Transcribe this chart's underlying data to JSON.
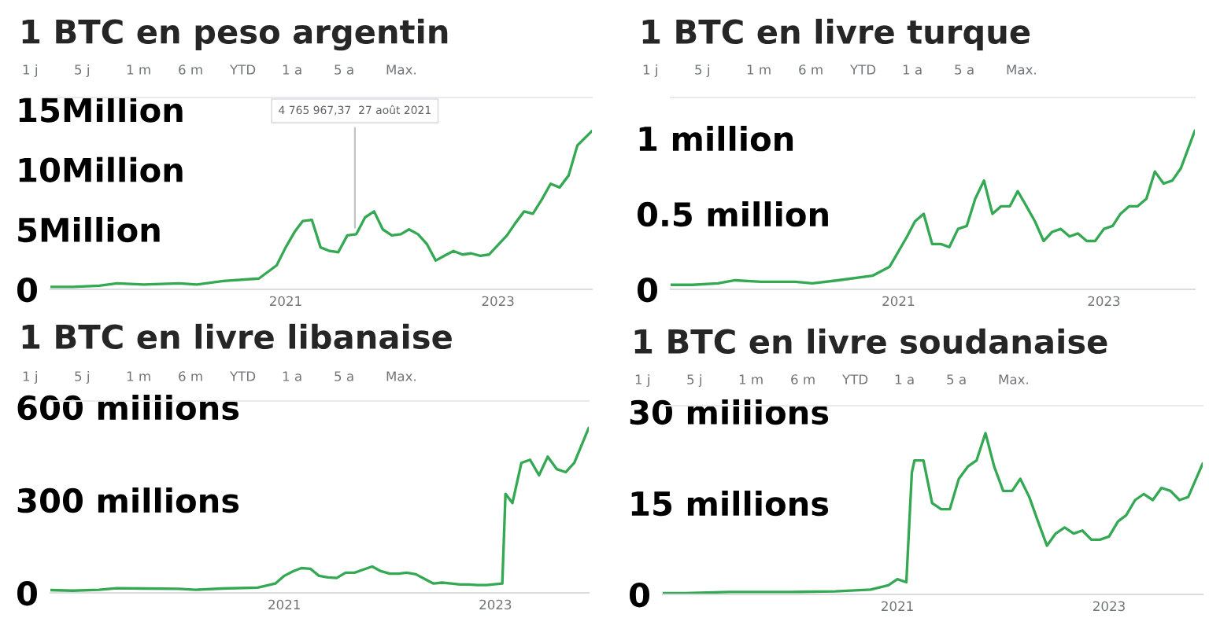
{
  "chart_data": [
    {
      "type": "line",
      "title": "1 BTC en peso argentin",
      "annotations": [
        "1 j",
        "5 j",
        "1 m",
        "6 m",
        "YTD",
        "1 a",
        "5 a",
        "Max.",
        {
          "text": "4 765 967,37  27 août 2021",
          "x": "2021-08-27",
          "y": 4.77
        }
      ],
      "x": [
        "2018-10-15",
        "2019-01",
        "2019-04",
        "2019-06",
        "2019-09",
        "2020-01",
        "2020-03",
        "2020-06",
        "2020-10",
        "2020-12",
        "2021-01",
        "2021-02",
        "2021-03",
        "2021-04",
        "2021-05",
        "2021-06",
        "2021-07",
        "2021-08",
        "2021-09",
        "2021-10",
        "2021-11",
        "2021-12",
        "2022-01",
        "2022-02",
        "2022-03",
        "2022-04",
        "2022-05",
        "2022-06",
        "2022-07",
        "2022-08",
        "2022-09",
        "2022-10",
        "2022-11",
        "2022-12",
        "2023-01",
        "2023-02",
        "2023-03",
        "2023-04",
        "2023-05",
        "2023-06",
        "2023-07",
        "2023-08",
        "2023-09",
        "2023-10",
        "2023-11-20"
      ],
      "series": [
        {
          "color": "#34a853",
          "values": [
            0.2,
            0.2,
            0.3,
            0.5,
            0.4,
            0.5,
            0.4,
            0.7,
            0.9,
            2.0,
            3.5,
            4.8,
            5.7,
            5.8,
            3.5,
            3.2,
            3.1,
            4.5,
            4.6,
            6.0,
            6.5,
            5.0,
            4.5,
            4.6,
            5.0,
            4.6,
            3.8,
            2.4,
            2.8,
            3.2,
            2.9,
            3.0,
            2.8,
            2.9,
            3.7,
            4.5,
            5.5,
            6.5,
            6.3,
            7.5,
            8.8,
            8.5,
            9.5,
            12.0,
            13.2
          ]
        }
      ],
      "xlim": [
        "2018-10-15",
        "2023-11-20"
      ],
      "xticks": [
        {
          "value": "2021-01-01",
          "label": "2021"
        },
        {
          "value": "2023-01-01",
          "label": "2023"
        }
      ],
      "ylim": [
        0,
        16
      ],
      "yticks": [
        0,
        {
          "value": 5,
          "label": "5Million"
        },
        {
          "value": 10,
          "label": "10Million"
        },
        {
          "value": 15,
          "label": "15Million"
        }
      ],
      "marker": "none",
      "line_style": "solid",
      "grid": false,
      "legend": false
    },
    {
      "type": "line",
      "title": "1 BTC en livre turque",
      "annotations": [
        "1 j",
        "5 j",
        "1 m",
        "6 m",
        "YTD",
        "1 a",
        "5 a",
        "Max."
      ],
      "x": [
        "2018-10-15",
        "2019-01",
        "2019-04",
        "2019-06",
        "2019-09",
        "2020-01",
        "2020-03",
        "2020-06",
        "2020-10",
        "2020-12",
        "2021-01",
        "2021-02",
        "2021-03",
        "2021-04",
        "2021-05",
        "2021-06",
        "2021-07",
        "2021-08",
        "2021-09",
        "2021-10",
        "2021-11",
        "2021-12",
        "2022-01",
        "2022-02",
        "2022-03",
        "2022-04",
        "2022-05",
        "2022-06",
        "2022-07",
        "2022-08",
        "2022-09",
        "2022-10",
        "2022-11",
        "2022-12",
        "2023-01",
        "2023-02",
        "2023-03",
        "2023-04",
        "2023-05",
        "2023-06",
        "2023-07",
        "2023-08",
        "2023-09",
        "2023-10",
        "2023-11-20"
      ],
      "series": [
        {
          "color": "#34a853",
          "values": [
            0.03,
            0.03,
            0.04,
            0.06,
            0.05,
            0.05,
            0.04,
            0.06,
            0.09,
            0.15,
            0.25,
            0.35,
            0.45,
            0.5,
            0.3,
            0.3,
            0.28,
            0.4,
            0.42,
            0.6,
            0.72,
            0.5,
            0.55,
            0.55,
            0.65,
            0.55,
            0.45,
            0.32,
            0.38,
            0.4,
            0.35,
            0.37,
            0.32,
            0.32,
            0.4,
            0.42,
            0.5,
            0.55,
            0.55,
            0.6,
            0.78,
            0.7,
            0.72,
            0.8,
            1.05
          ]
        }
      ],
      "xlim": [
        "2018-10-15",
        "2023-11-20"
      ],
      "xticks": [
        {
          "value": "2021-01-01",
          "label": "2021"
        },
        {
          "value": "2023-01-01",
          "label": "2023"
        }
      ],
      "ylim": [
        0,
        1.27
      ],
      "yticks": [
        0,
        {
          "value": 0.5,
          "label": "0.5 million"
        },
        {
          "value": 1,
          "label": "1 million"
        }
      ],
      "marker": "none",
      "line_style": "solid",
      "grid": false,
      "legend": false
    },
    {
      "type": "line",
      "title": "1 BTC en livre libanaise",
      "annotations": [
        "1 j",
        "5 j",
        "1 m",
        "6 m",
        "YTD",
        "1 a",
        "5 a",
        "Max."
      ],
      "x": [
        "2018-10-15",
        "2019-01",
        "2019-04",
        "2019-06",
        "2019-09",
        "2020-01",
        "2020-03",
        "2020-06",
        "2020-10",
        "2020-12",
        "2021-01",
        "2021-02",
        "2021-03",
        "2021-04",
        "2021-05",
        "2021-06",
        "2021-07",
        "2021-08",
        "2021-09",
        "2021-10",
        "2021-11",
        "2021-12",
        "2022-01",
        "2022-02",
        "2022-03",
        "2022-04",
        "2022-05",
        "2022-06",
        "2022-07",
        "2022-08",
        "2022-09",
        "2022-10",
        "2022-11",
        "2022-12",
        "2023-01-25",
        "2023-02-05",
        "2023-03",
        "2023-04",
        "2023-05",
        "2023-06",
        "2023-07",
        "2023-08",
        "2023-09",
        "2023-10",
        "2023-11-20"
      ],
      "series": [
        {
          "color": "#34a853",
          "values": [
            9,
            7,
            10,
            15,
            14,
            13,
            10,
            14,
            17,
            30,
            55,
            70,
            80,
            78,
            55,
            50,
            48,
            65,
            65,
            75,
            85,
            70,
            62,
            62,
            65,
            60,
            45,
            30,
            33,
            30,
            27,
            27,
            25,
            25,
            30,
            320,
            290,
            420,
            430,
            380,
            440,
            400,
            390,
            420,
            533
          ]
        }
      ],
      "xlim": [
        "2018-10-15",
        "2023-11-20"
      ],
      "xticks": [
        {
          "value": "2021-01-01",
          "label": "2021"
        },
        {
          "value": "2023-01-01",
          "label": "2023"
        }
      ],
      "ylim": [
        0,
        620
      ],
      "yticks": [
        0,
        {
          "value": 300,
          "label": "300 millions"
        },
        {
          "value": 600,
          "label": "600 millions"
        }
      ],
      "marker": "none",
      "line_style": "solid",
      "grid": false,
      "legend": false
    },
    {
      "type": "line",
      "title": "1 BTC en livre soudanaise",
      "annotations": [
        "1 j",
        "5 j",
        "1 m",
        "6 m",
        "YTD",
        "1 a",
        "5 a",
        "Max."
      ],
      "x": [
        "2018-10-15",
        "2019-01",
        "2019-06",
        "2019-09",
        "2020-01",
        "2020-06",
        "2020-10",
        "2020-12",
        "2021-01",
        "2021-02-01",
        "2021-02-20",
        "2021-03",
        "2021-04",
        "2021-05",
        "2021-06",
        "2021-07",
        "2021-08",
        "2021-09",
        "2021-10",
        "2021-11",
        "2021-12",
        "2022-01",
        "2022-02",
        "2022-03",
        "2022-04",
        "2022-05",
        "2022-06",
        "2022-07",
        "2022-08",
        "2022-09",
        "2022-10",
        "2022-11",
        "2022-12",
        "2023-01",
        "2023-02",
        "2023-03",
        "2023-04",
        "2023-05",
        "2023-06",
        "2023-07",
        "2023-08",
        "2023-09",
        "2023-10",
        "2023-11-20"
      ],
      "series": [
        {
          "color": "#34a853",
          "values": [
            0.2,
            0.2,
            0.4,
            0.4,
            0.4,
            0.5,
            0.8,
            1.5,
            2.5,
            2.0,
            20,
            22,
            22,
            15,
            14,
            14,
            19,
            21,
            22,
            26.5,
            21,
            17,
            17,
            19,
            16,
            12,
            8,
            10,
            11,
            10,
            10.5,
            9,
            9,
            9.5,
            12,
            13,
            15.5,
            16.5,
            15.5,
            17.5,
            17,
            15.5,
            16,
            21.5
          ]
        }
      ],
      "xlim": [
        "2018-10-15",
        "2023-11-20"
      ],
      "xticks": [
        {
          "value": "2021-01-01",
          "label": "2021"
        },
        {
          "value": "2023-01-01",
          "label": "2023"
        }
      ],
      "ylim": [
        0,
        31
      ],
      "yticks": [
        0,
        {
          "value": 15,
          "label": "15 millions"
        },
        {
          "value": 30,
          "label": "30 millions"
        }
      ],
      "marker": "none",
      "line_style": "solid",
      "grid": false,
      "legend": false
    }
  ]
}
